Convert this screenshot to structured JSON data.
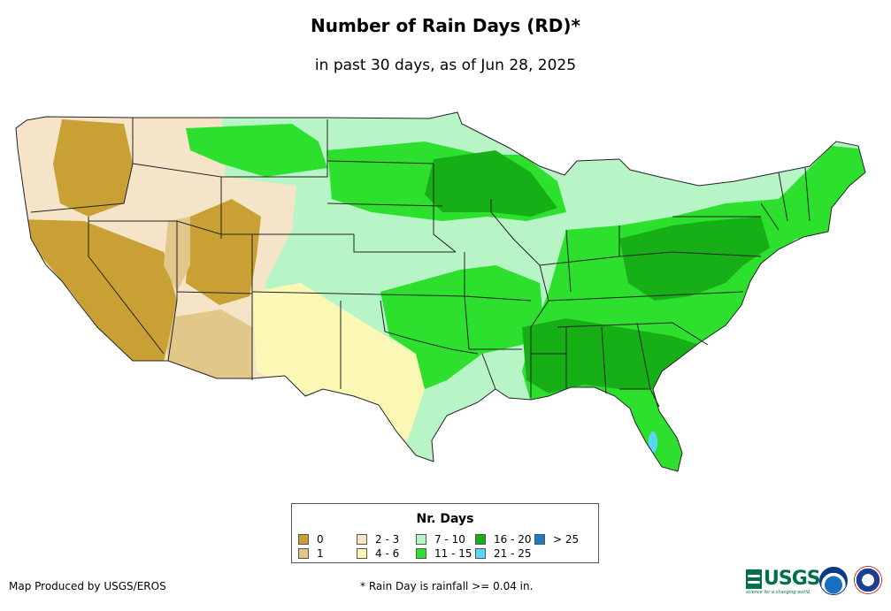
{
  "title": "Number of Rain Days (RD)*",
  "subtitle": "in past 30 days, as of Jun 28, 2025",
  "legend": {
    "title": "Nr. Days",
    "items": [
      {
        "label": "0",
        "color": "#c9a033"
      },
      {
        "label": "1",
        "color": "#e2c78b"
      },
      {
        "label": "2 - 3",
        "color": "#f5e4c8"
      },
      {
        "label": "4 - 6",
        "color": "#fbf7b4"
      },
      {
        "label": "7 - 10",
        "color": "#b8f5c6"
      },
      {
        "label": "11 - 15",
        "color": "#2de02d"
      },
      {
        "label": "16 - 20",
        "color": "#16b016"
      },
      {
        "label": "21 - 25",
        "color": "#5ad6f5"
      },
      {
        "label": "> 25",
        "color": "#1f7bbf"
      }
    ]
  },
  "credit": "Map Produced by USGS/EROS",
  "footnote": "* Rain Day is rainfall >= 0.04 in.",
  "logos": {
    "usgs": "USGS",
    "usgs_tagline": "science for a changing world",
    "noaa": "noaa-logo",
    "nws": "nws-logo"
  }
}
